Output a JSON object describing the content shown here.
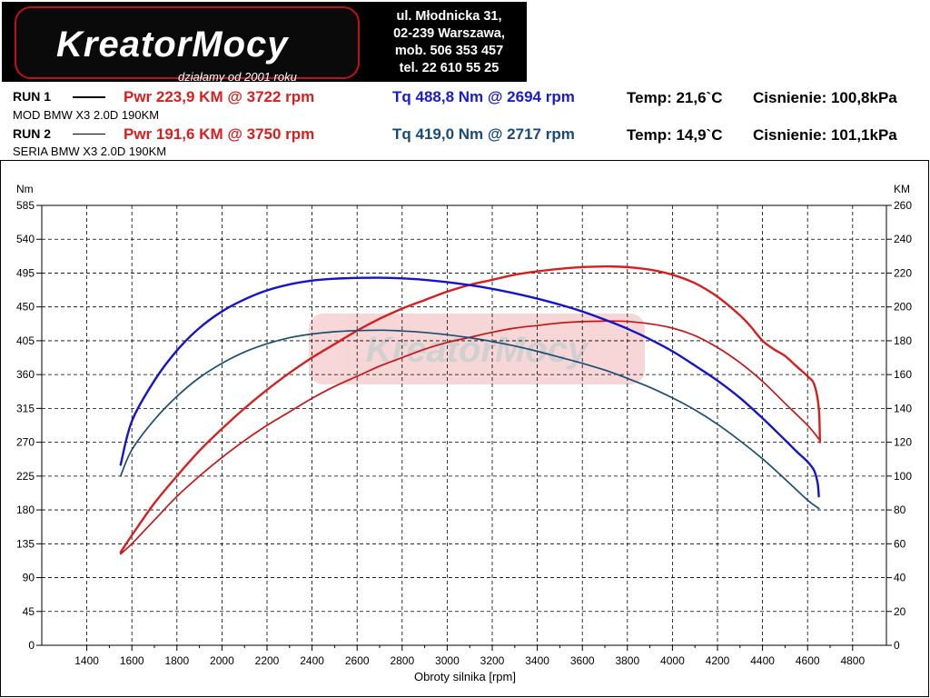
{
  "brand": {
    "name_main": "KreatorMocy",
    "tagline": "działamy od 2001 roku",
    "address": [
      "ul. Młodnicka 31,",
      "02-239  Warszawa,",
      "mob.  506 353 457",
      "tel.  22 610 55 25"
    ]
  },
  "runs": [
    {
      "label": "RUN 1",
      "description": "MOD BMW X3 2.0D 190KM",
      "pwr": "Pwr  223,9 KM @ 3722 rpm",
      "tq": "Tq 488,8 Nm @ 2694 rpm",
      "temp": "Temp: 21,6`C",
      "pressure": "Cisnienie: 100,8kPa"
    },
    {
      "label": "RUN 2",
      "description": "SERIA BMW X3 2.0D 190KM",
      "pwr": "Pwr  191,6 KM @ 3750 rpm",
      "tq": "Tq 419,0 Nm @ 2717 rpm",
      "temp": "Temp: 14,9`C",
      "pressure": "Cisnienie: 101,1kPa"
    }
  ],
  "colors": {
    "run1_power": "#d42020",
    "run2_power": "#c41818",
    "run1_torque": "#1414c8",
    "run2_torque": "#1c4e74"
  },
  "chart_data": {
    "type": "line",
    "xlabel": "Obroty silnika [rpm]",
    "ylabel_left": "Nm",
    "ylabel_right": "KM",
    "xlim": [
      1200,
      4950
    ],
    "x_ticks": [
      1400,
      1600,
      1800,
      2000,
      2200,
      2400,
      2600,
      2800,
      3000,
      3200,
      3400,
      3600,
      3800,
      4000,
      4200,
      4400,
      4600,
      4800
    ],
    "ylim_left": [
      0,
      585
    ],
    "y_ticks_left": [
      0,
      45,
      90,
      135,
      180,
      225,
      270,
      315,
      360,
      405,
      450,
      495,
      540,
      585
    ],
    "ylim_right": [
      0,
      260
    ],
    "y_ticks_right": [
      0,
      20,
      40,
      60,
      80,
      100,
      120,
      140,
      160,
      180,
      200,
      220,
      240,
      260
    ],
    "grid": true,
    "series": [
      {
        "name": "RUN 1",
        "axis": "right",
        "color": "#d42020",
        "width": 2.4,
        "x": [
          1550,
          1600,
          1700,
          1800,
          1900,
          2000,
          2100,
          2200,
          2300,
          2400,
          2500,
          2600,
          2700,
          2800,
          2900,
          3000,
          3100,
          3200,
          3300,
          3400,
          3500,
          3600,
          3700,
          3722,
          3800,
          3900,
          4000,
          4100,
          4200,
          4300,
          4350,
          4400,
          4450,
          4500,
          4550,
          4600,
          4630,
          4650,
          4655
        ],
        "y": [
          55,
          65,
          84,
          100,
          115,
          128,
          140,
          151,
          161,
          170,
          178,
          186,
          193,
          199,
          204,
          209,
          213,
          216,
          219,
          221,
          222.5,
          223.5,
          223.9,
          223.9,
          223.5,
          222,
          219,
          214,
          206,
          195,
          188,
          180,
          175,
          171,
          165,
          159,
          154,
          140,
          120
        ]
      },
      {
        "name": "RUN 2",
        "axis": "right",
        "color": "#c41818",
        "width": 1.7,
        "x": [
          1550,
          1600,
          1700,
          1800,
          1900,
          2000,
          2100,
          2200,
          2300,
          2400,
          2500,
          2600,
          2700,
          2800,
          2900,
          3000,
          3100,
          3200,
          3300,
          3400,
          3500,
          3600,
          3700,
          3750,
          3800,
          3900,
          4000,
          4100,
          4200,
          4300,
          4400,
          4500,
          4600,
          4650
        ],
        "y": [
          54,
          60,
          74,
          88,
          100,
          111,
          121,
          130,
          138,
          146,
          153,
          159,
          165,
          170,
          175,
          179,
          182,
          185,
          187.5,
          189,
          190.5,
          191.3,
          191.6,
          191.6,
          191.4,
          190,
          187.5,
          183,
          176,
          167,
          156,
          143,
          130,
          122
        ]
      },
      {
        "name": "RUN 1",
        "axis": "left",
        "color": "#1414c8",
        "width": 2.4,
        "x": [
          1550,
          1600,
          1700,
          1800,
          1900,
          2000,
          2100,
          2200,
          2300,
          2400,
          2500,
          2600,
          2694,
          2800,
          2900,
          3000,
          3100,
          3200,
          3300,
          3400,
          3500,
          3600,
          3700,
          3800,
          3900,
          4000,
          4100,
          4200,
          4300,
          4400,
          4500,
          4550,
          4600,
          4630,
          4645,
          4650
        ],
        "y": [
          240,
          298,
          352,
          392,
          422,
          444,
          460,
          472,
          480,
          485,
          487.5,
          488.5,
          488.8,
          488,
          486,
          483,
          479,
          474,
          468,
          461,
          453,
          444,
          433,
          421,
          407,
          391,
          372,
          352,
          329,
          302,
          273,
          258,
          244,
          232,
          215,
          198
        ]
      },
      {
        "name": "RUN 2",
        "axis": "left",
        "color": "#1c4e74",
        "width": 1.7,
        "x": [
          1550,
          1600,
          1700,
          1800,
          1900,
          2000,
          2100,
          2200,
          2300,
          2400,
          2500,
          2600,
          2717,
          2800,
          2900,
          3000,
          3100,
          3200,
          3300,
          3400,
          3500,
          3600,
          3700,
          3800,
          3900,
          4000,
          4100,
          4200,
          4300,
          4400,
          4500,
          4600,
          4650
        ],
        "y": [
          225,
          260,
          300,
          331,
          356,
          375,
          390,
          401,
          409,
          414,
          417,
          418.5,
          419,
          418,
          416,
          413,
          409,
          404,
          398,
          391,
          383,
          375,
          366,
          355,
          343,
          329,
          313,
          294,
          272,
          248,
          221,
          193,
          182
        ]
      }
    ]
  }
}
